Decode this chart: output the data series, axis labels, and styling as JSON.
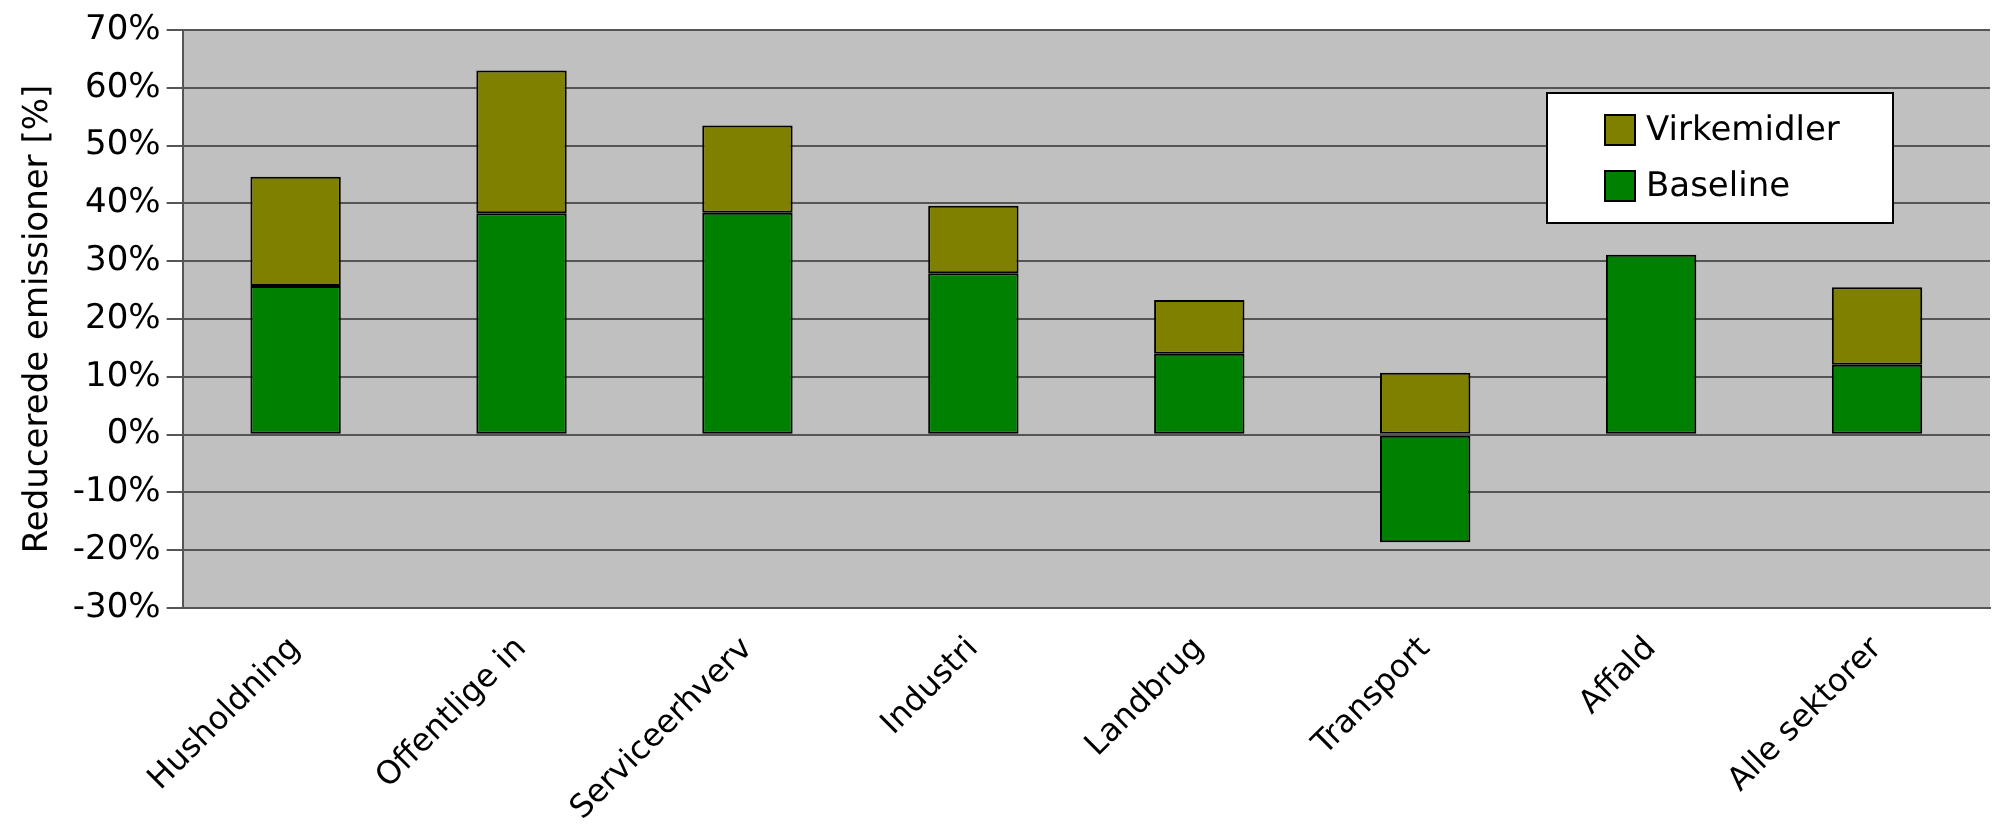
{
  "chart_data": {
    "type": "bar",
    "stacked": true,
    "ylabel": "Reducerede emissioner [%]",
    "categories": [
      "Husholdning",
      "Offentlige in",
      "Serviceerhverv",
      "Industri",
      "Landbrug",
      "Transport",
      "Affald",
      "Alle sektorer"
    ],
    "series": [
      {
        "name": "Baseline",
        "color": "#008000",
        "values": [
          25.7,
          38.3,
          38.4,
          27.9,
          14.0,
          -18.6,
          31.1,
          12.1
        ]
      },
      {
        "name": "Virkemidler",
        "color": "#808000",
        "values": [
          18.9,
          24.7,
          15.1,
          11.7,
          9.3,
          10.7,
          0,
          13.4
        ]
      }
    ],
    "ylim": [
      -30,
      70
    ],
    "yticks": [
      {
        "value": -30,
        "label": "-30%"
      },
      {
        "value": -20,
        "label": "-20%"
      },
      {
        "value": -10,
        "label": "-10%"
      },
      {
        "value": 0,
        "label": "0%"
      },
      {
        "value": 10,
        "label": "10%"
      },
      {
        "value": 20,
        "label": "20%"
      },
      {
        "value": 30,
        "label": "30%"
      },
      {
        "value": 40,
        "label": "40%"
      },
      {
        "value": 50,
        "label": "50%"
      },
      {
        "value": 60,
        "label": "60%"
      },
      {
        "value": 70,
        "label": "70%"
      }
    ],
    "grid": "y",
    "legend": "top right"
  }
}
